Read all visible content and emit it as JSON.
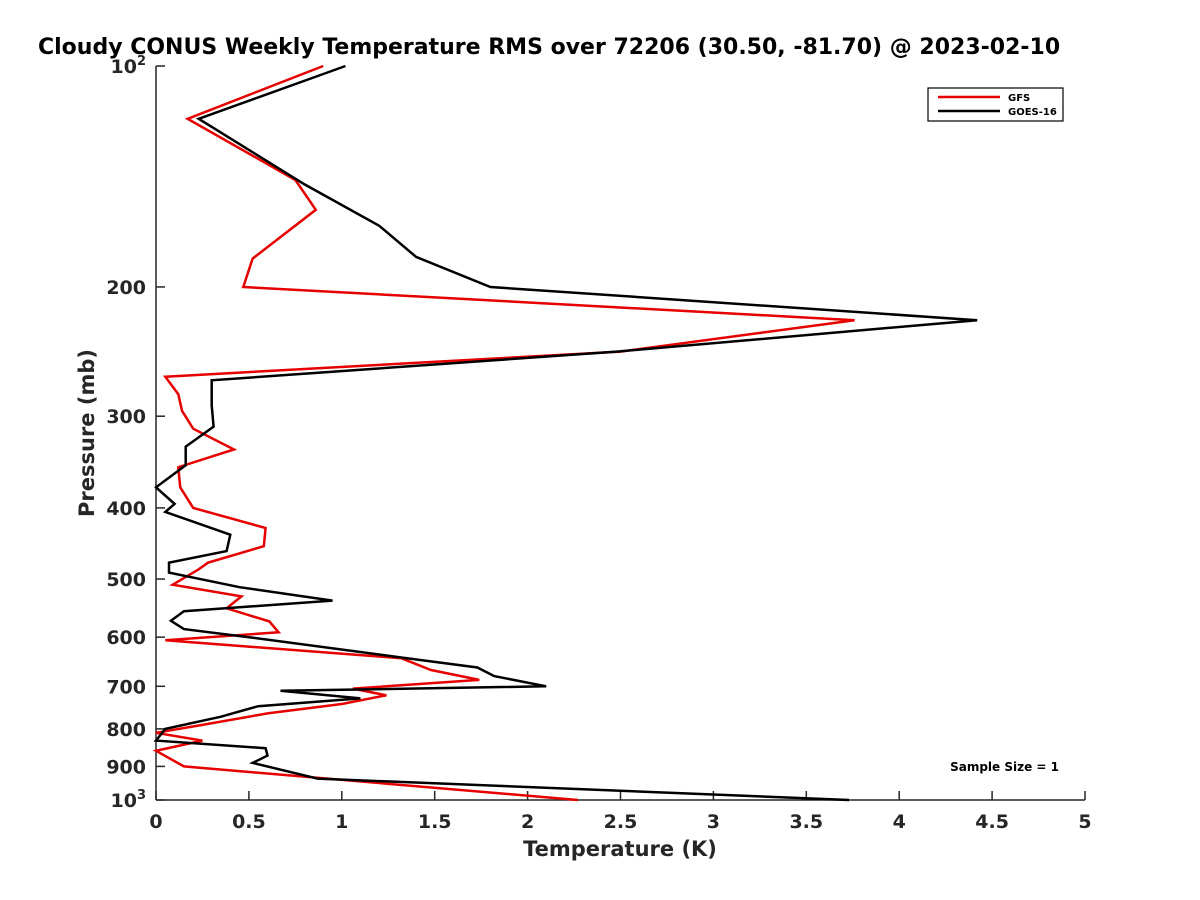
{
  "chart_data": {
    "type": "line",
    "title": "Cloudy CONUS Weekly Temperature RMS over 72206 (30.50, -81.70) @ 2023-02-10",
    "xlabel": "Temperature (K)",
    "ylabel": "Pressure (mb)",
    "xlim": [
      0,
      5
    ],
    "ylim": [
      100,
      1000
    ],
    "y_scale": "log",
    "y_reversed": true,
    "x_ticks": [
      "0",
      "0.5",
      "1",
      "1.5",
      "2",
      "2.5",
      "3",
      "3.5",
      "4",
      "4.5",
      "5"
    ],
    "y_ticks": [
      {
        "value": 100,
        "base": "10",
        "exp": "2"
      },
      {
        "value": 200,
        "label": "200"
      },
      {
        "value": 300,
        "label": "300"
      },
      {
        "value": 400,
        "label": "400"
      },
      {
        "value": 500,
        "label": "500"
      },
      {
        "value": 600,
        "label": "600"
      },
      {
        "value": 700,
        "label": "700"
      },
      {
        "value": 800,
        "label": "800"
      },
      {
        "value": 900,
        "label": "900"
      },
      {
        "value": 1000,
        "base": "10",
        "exp": "3"
      }
    ],
    "legend_position": "top-right",
    "grid": false,
    "annotation": "Sample Size = 1",
    "series": [
      {
        "name": "GFS",
        "color": "#e60000",
        "x": [
          0.9,
          0.17,
          0.75,
          0.86,
          0.52,
          0.47,
          3.76,
          2.5,
          0.05,
          0.12,
          0.14,
          0.2,
          0.42,
          0.12,
          0.13,
          0.2,
          0.59,
          0.58,
          0.28,
          0.23,
          0.09,
          0.46,
          0.38,
          0.61,
          0.66,
          0.05,
          1.32,
          1.48,
          1.74,
          1.06,
          1.24,
          1.0,
          0.6,
          0.25,
          0.0,
          0.25,
          0.0,
          0.15,
          2.27
        ],
        "y": [
          100,
          118,
          143,
          157,
          183,
          200,
          222,
          245,
          265,
          280,
          295,
          312,
          333,
          352,
          375,
          400,
          426,
          451,
          475,
          485,
          509,
          528,
          548,
          571,
          591,
          606,
          641,
          665,
          686,
          705,
          720,
          740,
          762,
          790,
          810,
          830,
          857,
          900,
          1000
        ]
      },
      {
        "name": "GOES-16",
        "color": "#000000",
        "x": [
          1.02,
          0.23,
          0.8,
          1.2,
          1.4,
          1.8,
          4.42,
          2.48,
          0.3,
          0.3,
          0.31,
          0.16,
          0.16,
          0.0,
          0.1,
          0.05,
          0.4,
          0.38,
          0.07,
          0.07,
          0.45,
          0.95,
          0.15,
          0.08,
          0.15,
          0.5,
          1.33,
          1.73,
          1.82,
          2.1,
          0.67,
          1.1,
          0.55,
          0.35,
          0.05,
          0.0,
          0.59,
          0.6,
          0.52,
          0.87,
          3.73
        ],
        "y": [
          100,
          118,
          145,
          165,
          182,
          200,
          222,
          245,
          268,
          290,
          310,
          330,
          350,
          375,
          395,
          405,
          435,
          458,
          475,
          490,
          513,
          535,
          553,
          570,
          585,
          600,
          640,
          660,
          678,
          700,
          710,
          727,
          745,
          770,
          800,
          830,
          850,
          870,
          890,
          935,
          1000
        ]
      }
    ]
  }
}
